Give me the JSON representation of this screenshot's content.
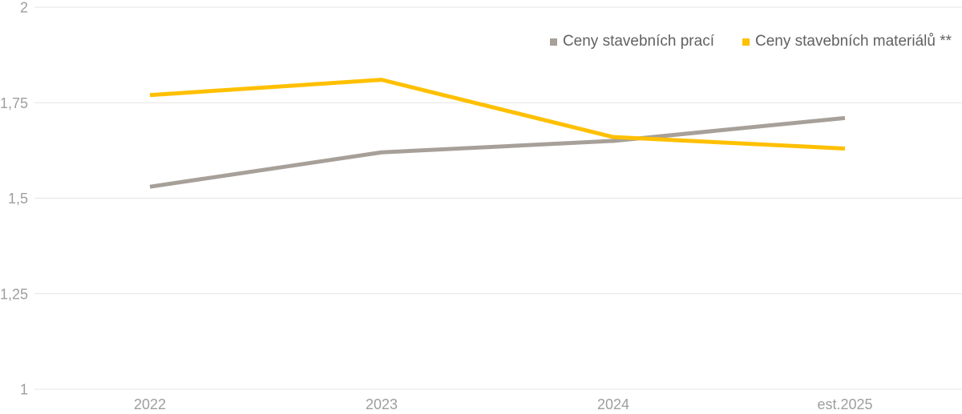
{
  "chart_data": {
    "type": "line",
    "title": "",
    "xlabel": "",
    "ylabel": "",
    "categories": [
      "2022",
      "2023",
      "2024",
      "est.2025"
    ],
    "series": [
      {
        "name": "Ceny stavebních prací",
        "color": "#A7A099",
        "values": [
          1.53,
          1.62,
          1.65,
          1.71
        ]
      },
      {
        "name": "Ceny stavebních materiálů **",
        "color": "#FFC000",
        "values": [
          1.77,
          1.81,
          1.66,
          1.63
        ]
      }
    ],
    "ylim": [
      1,
      2
    ],
    "yticks": [
      {
        "value": 1,
        "label": "1"
      },
      {
        "value": 1.25,
        "label": "1,25"
      },
      {
        "value": 1.5,
        "label": "1,5"
      },
      {
        "value": 1.75,
        "label": "1,75"
      },
      {
        "value": 2,
        "label": "2"
      }
    ],
    "decimal_separator": ",",
    "grid": "horizontal",
    "legend_position": "top-right"
  },
  "colors": {
    "background": "#FFFFFF",
    "gridline": "#E4E4E4",
    "axis_label": "#9E9E9E",
    "legend_text": "#616161"
  }
}
